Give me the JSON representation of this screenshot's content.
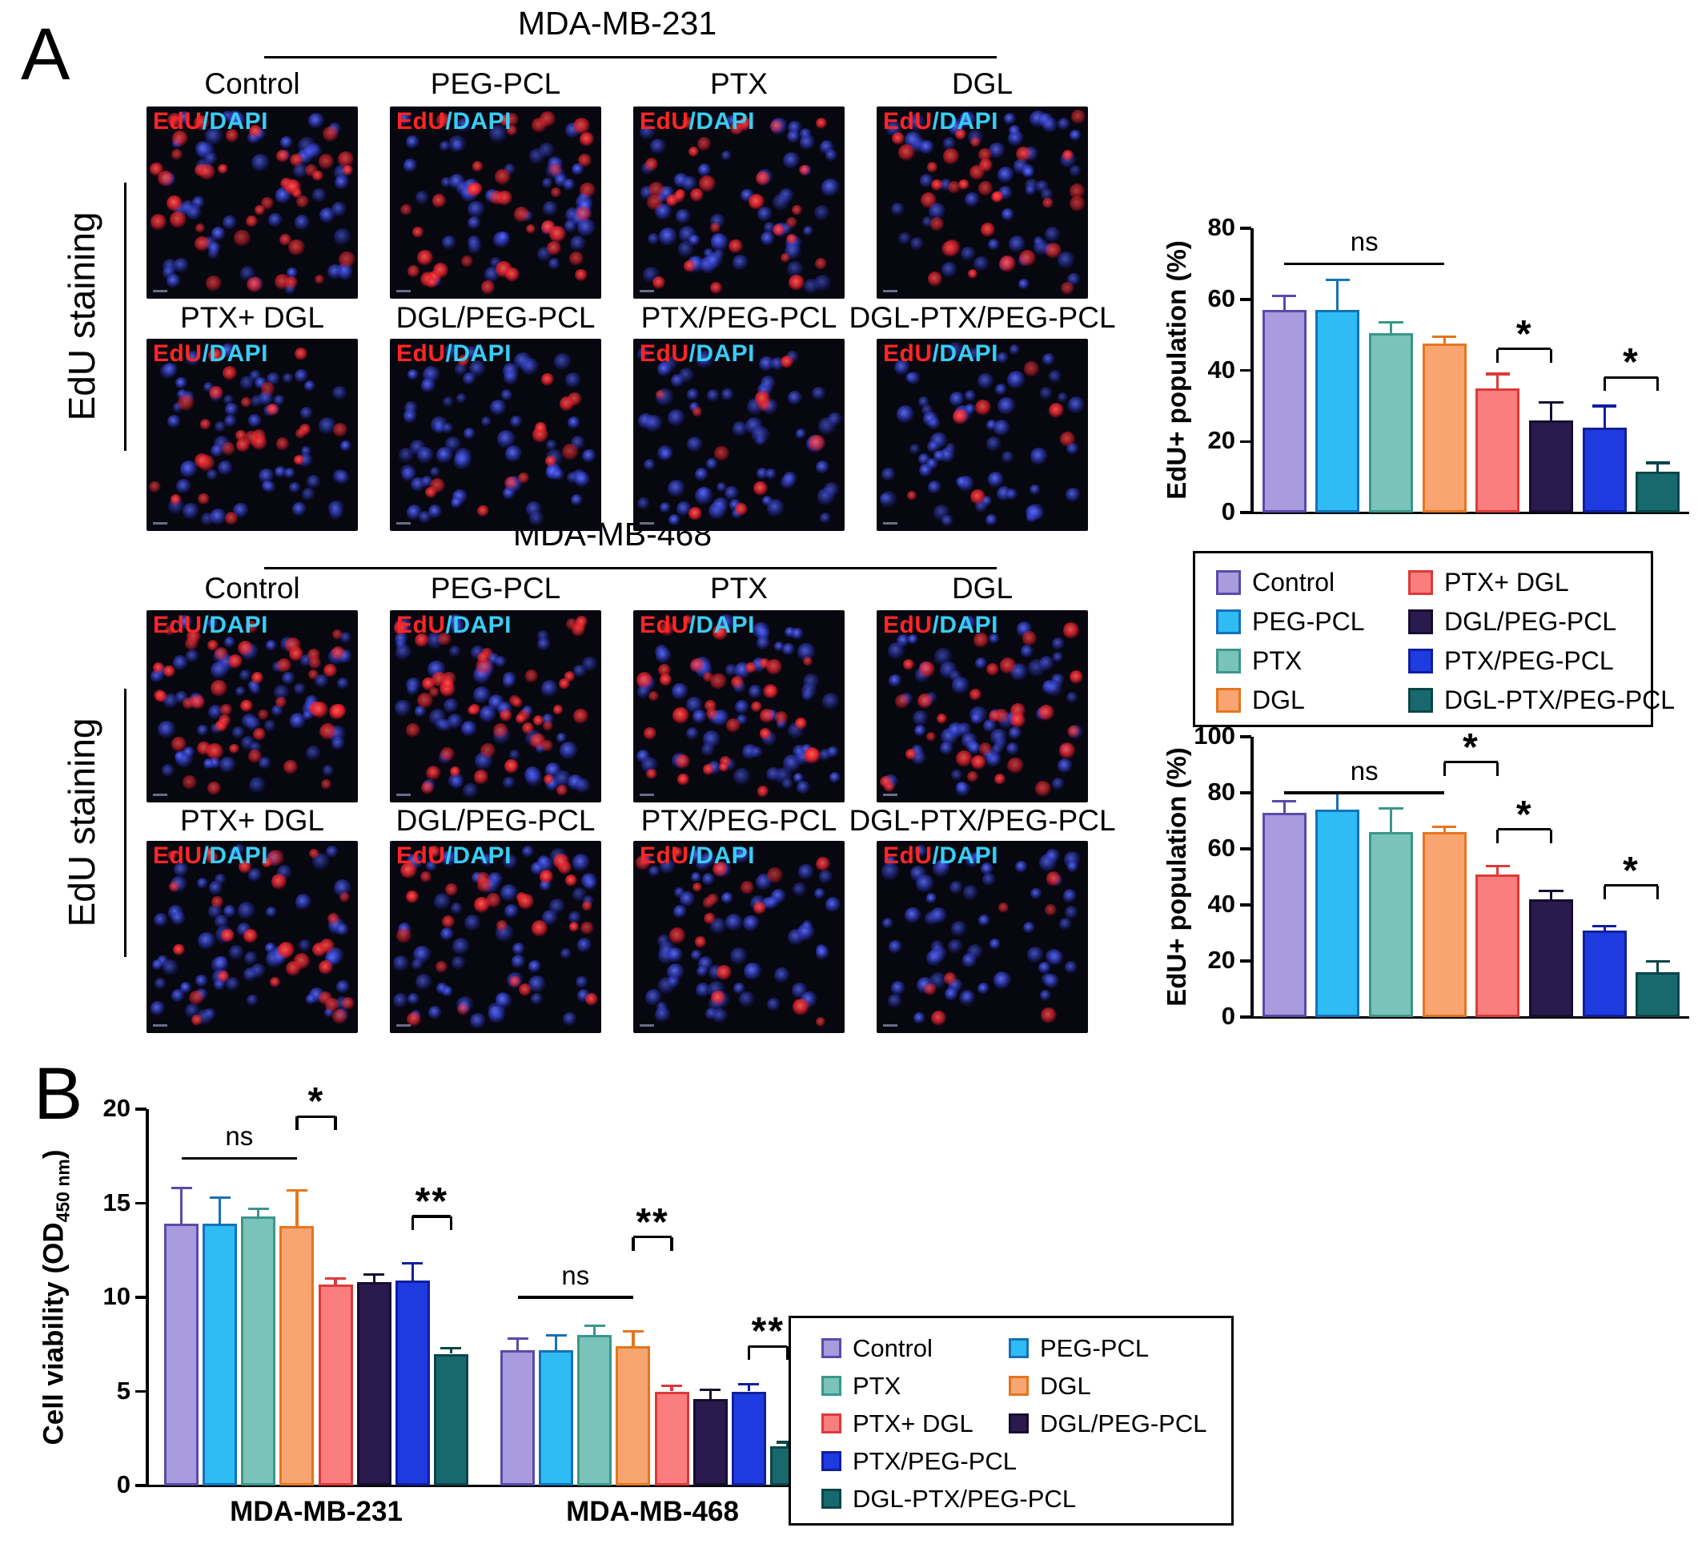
{
  "colors": {
    "control": {
      "fill": "#A89BDE",
      "edge": "#5B4AA8"
    },
    "peg_pcl": {
      "fill": "#2FBCF5",
      "edge": "#1671B8"
    },
    "ptx": {
      "fill": "#7AC3BA",
      "edge": "#3B968B"
    },
    "dgl": {
      "fill": "#F8A572",
      "edge": "#E4761F"
    },
    "ptx_dgl": {
      "fill": "#FA7E7E",
      "edge": "#DC3A3A"
    },
    "dgl_peg_pcl": {
      "fill": "#2B1A4E",
      "edge": "#170D2F"
    },
    "ptx_peg_pcl": {
      "fill": "#1E3BE0",
      "edge": "#0F1F9E"
    },
    "dgl_ptx_peg_pcl": {
      "fill": "#17696E",
      "edge": "#0B4548"
    }
  },
  "panel_a": {
    "letter": "A",
    "edu_staining_label": "EdU staining",
    "overlay": {
      "edu": "EdU",
      "dapi": "/DAPI"
    },
    "sections": [
      {
        "title": "MDA-MB-231",
        "tiles": [
          {
            "label": "Control",
            "color_key": "control",
            "red": 40,
            "blue": 52
          },
          {
            "label": "PEG-PCL",
            "color_key": "peg_pcl",
            "red": 40,
            "blue": 52
          },
          {
            "label": "PTX",
            "color_key": "ptx",
            "red": 30,
            "blue": 56
          },
          {
            "label": "DGL",
            "color_key": "dgl",
            "red": 32,
            "blue": 56
          },
          {
            "label": "PTX+ DGL",
            "color_key": "ptx_dgl",
            "red": 26,
            "blue": 58
          },
          {
            "label": "DGL/PEG-PCL",
            "color_key": "dgl_peg_pcl",
            "red": 13,
            "blue": 62
          },
          {
            "label": "PTX/PEG-PCL",
            "color_key": "ptx_peg_pcl",
            "red": 10,
            "blue": 60
          },
          {
            "label": "DGL-PTX/PEG-PCL",
            "color_key": "dgl_ptx_peg_pcl",
            "red": 7,
            "blue": 60
          }
        ]
      },
      {
        "title": "MDA-MB-468",
        "tiles": [
          {
            "label": "Control",
            "color_key": "control",
            "red": 46,
            "blue": 58
          },
          {
            "label": "PEG-PCL",
            "color_key": "peg_pcl",
            "red": 46,
            "blue": 58
          },
          {
            "label": "PTX",
            "color_key": "ptx",
            "red": 36,
            "blue": 60
          },
          {
            "label": "DGL",
            "color_key": "dgl",
            "red": 30,
            "blue": 60
          },
          {
            "label": "PTX+ DGL",
            "color_key": "ptx_dgl",
            "red": 30,
            "blue": 62
          },
          {
            "label": "DGL/PEG-PCL",
            "color_key": "dgl_peg_pcl",
            "red": 28,
            "blue": 60
          },
          {
            "label": "PTX/PEG-PCL",
            "color_key": "ptx_peg_pcl",
            "red": 17,
            "blue": 60
          },
          {
            "label": "DGL-PTX/PEG-PCL",
            "color_key": "dgl_ptx_peg_pcl",
            "red": 7,
            "blue": 58
          }
        ]
      }
    ],
    "legend": {
      "left": [
        {
          "label": "Control",
          "color_key": "control"
        },
        {
          "label": "PEG-PCL",
          "color_key": "peg_pcl"
        },
        {
          "label": "PTX",
          "color_key": "ptx"
        },
        {
          "label": "DGL",
          "color_key": "dgl"
        }
      ],
      "right": [
        {
          "label": "PTX+ DGL",
          "color_key": "ptx_dgl"
        },
        {
          "label": "DGL/PEG-PCL",
          "color_key": "dgl_peg_pcl"
        },
        {
          "label": "PTX/PEG-PCL",
          "color_key": "ptx_peg_pcl"
        },
        {
          "label": "DGL-PTX/PEG-PCL",
          "color_key": "dgl_ptx_peg_pcl"
        }
      ]
    }
  },
  "panel_b": {
    "letter": "B",
    "ylabel_pre": "Cell viability (OD",
    "ylabel_sub": "450 nm",
    "ylabel_post": ")",
    "legend": {
      "left": [
        {
          "label": "Control",
          "color_key": "control"
        },
        {
          "label": "PTX",
          "color_key": "ptx"
        },
        {
          "label": "PTX+ DGL",
          "color_key": "ptx_dgl"
        },
        {
          "label": "PTX/PEG-PCL",
          "color_key": "ptx_peg_pcl"
        },
        {
          "label": "DGL-PTX/PEG-PCL",
          "color_key": "dgl_ptx_peg_pcl"
        }
      ],
      "right": [
        {
          "label": "PEG-PCL",
          "color_key": "peg_pcl"
        },
        {
          "label": "DGL",
          "color_key": "dgl"
        },
        {
          "label": "DGL/PEG-PCL",
          "color_key": "dgl_peg_pcl"
        }
      ]
    }
  },
  "chart_data": [
    {
      "id": "edu_population_mda_mb_231",
      "type": "bar",
      "title": "MDA-MB-231",
      "ylabel": "EdU+ population (%)",
      "ylim": [
        0,
        80
      ],
      "yticks": [
        0,
        20,
        40,
        60,
        80
      ],
      "categories": [
        "Control",
        "PEG-PCL",
        "PTX",
        "DGL",
        "PTX+ DGL",
        "DGL/PEG-PCL",
        "PTX/PEG-PCL",
        "DGL-PTX/PEG-PCL"
      ],
      "color_keys": [
        "control",
        "peg_pcl",
        "ptx",
        "dgl",
        "ptx_dgl",
        "dgl_peg_pcl",
        "ptx_peg_pcl",
        "dgl_ptx_peg_pcl"
      ],
      "values": [
        57,
        57,
        50.5,
        47.5,
        35,
        26,
        24,
        11.5
      ],
      "errors": [
        4,
        8.5,
        3,
        2,
        4,
        5,
        6,
        2.5
      ],
      "annotations": [
        {
          "label": "ns",
          "style": "line",
          "from": 0,
          "to": 3,
          "y": 70
        },
        {
          "label": "*",
          "style": "bracket",
          "from": 4,
          "to": 5,
          "y": 46
        },
        {
          "label": "*",
          "style": "bracket",
          "from": 6,
          "to": 7,
          "y": 38
        }
      ]
    },
    {
      "id": "edu_population_mda_mb_468",
      "type": "bar",
      "title": "MDA-MB-468",
      "ylabel": "EdU+ population (%)",
      "ylim": [
        0,
        100
      ],
      "yticks": [
        0,
        20,
        40,
        60,
        80,
        100
      ],
      "categories": [
        "Control",
        "PEG-PCL",
        "PTX",
        "DGL",
        "PTX+ DGL",
        "DGL/PEG-PCL",
        "PTX/PEG-PCL",
        "DGL-PTX/PEG-PCL"
      ],
      "color_keys": [
        "control",
        "peg_pcl",
        "ptx",
        "dgl",
        "ptx_dgl",
        "dgl_peg_pcl",
        "ptx_peg_pcl",
        "dgl_ptx_peg_pcl"
      ],
      "values": [
        73,
        74,
        66,
        66,
        51,
        42,
        31,
        16
      ],
      "errors": [
        4,
        6,
        8.5,
        2,
        3,
        3,
        1.5,
        4
      ],
      "annotations": [
        {
          "label": "ns",
          "style": "line",
          "from": 0,
          "to": 3,
          "y": 80
        },
        {
          "label": "*",
          "style": "bracket",
          "from": 3,
          "to": 4,
          "y": 91
        },
        {
          "label": "*",
          "style": "bracket",
          "from": 4,
          "to": 5,
          "y": 67
        },
        {
          "label": "*",
          "style": "bracket",
          "from": 6,
          "to": 7,
          "y": 47
        }
      ]
    },
    {
      "id": "cell_viability",
      "type": "grouped_bar",
      "title": "",
      "ylabel": "Cell viability (OD450 nm)",
      "ylim": [
        0,
        20
      ],
      "yticks": [
        0,
        5,
        10,
        15,
        20
      ],
      "groups": [
        "MDA-MB-231",
        "MDA-MB-468"
      ],
      "categories": [
        "Control",
        "PEG-PCL",
        "PTX",
        "DGL",
        "PTX+ DGL",
        "DGL/PEG-PCL",
        "PTX/PEG-PCL",
        "DGL-PTX/PEG-PCL"
      ],
      "color_keys": [
        "control",
        "peg_pcl",
        "ptx",
        "dgl",
        "ptx_dgl",
        "dgl_peg_pcl",
        "ptx_peg_pcl",
        "dgl_ptx_peg_pcl"
      ],
      "series": [
        {
          "name": "MDA-MB-231",
          "values": [
            13.9,
            13.9,
            14.3,
            13.8,
            10.7,
            10.8,
            10.9,
            7.0
          ],
          "errors": [
            1.9,
            1.4,
            0.4,
            1.9,
            0.3,
            0.4,
            0.9,
            0.3
          ]
        },
        {
          "name": "MDA-MB-468",
          "values": [
            7.2,
            7.2,
            8.0,
            7.4,
            5.0,
            4.6,
            5.0,
            2.1
          ],
          "errors": [
            0.6,
            0.8,
            0.5,
            0.8,
            0.3,
            0.5,
            0.4,
            0.2
          ]
        }
      ],
      "annotations": [
        {
          "label": "ns",
          "style": "line",
          "group": 0,
          "from": 0,
          "to": 3,
          "y": 17.4
        },
        {
          "label": "*",
          "style": "bracket",
          "group": 0,
          "from": 3,
          "to": 4,
          "y": 19.6
        },
        {
          "label": "**",
          "style": "bracket",
          "group": 0,
          "from": 6,
          "to": 7,
          "y": 14.3
        },
        {
          "label": "ns",
          "style": "line",
          "group": 1,
          "from": 0,
          "to": 3,
          "y": 10.0
        },
        {
          "label": "**",
          "style": "bracket",
          "group": 1,
          "from": 3,
          "to": 4,
          "y": 13.2
        },
        {
          "label": "**",
          "style": "bracket",
          "group": 1,
          "from": 6,
          "to": 7,
          "y": 7.4
        }
      ]
    }
  ]
}
